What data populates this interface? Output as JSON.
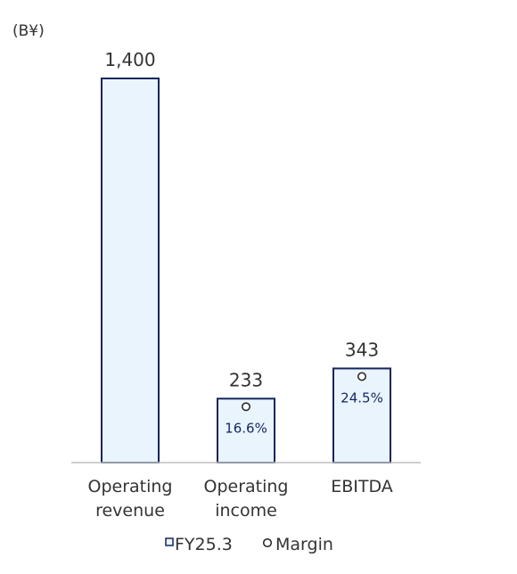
{
  "chart_data": {
    "type": "bar",
    "unit_label": "(B¥)",
    "categories": [
      [
        "Operating",
        "revenue"
      ],
      [
        "Operating",
        "income"
      ],
      [
        "EBITDA"
      ]
    ],
    "series": [
      {
        "name": "FY25.3",
        "values": [
          1400,
          233,
          343
        ],
        "value_labels": [
          "1,400",
          "233",
          "343"
        ]
      },
      {
        "name": "Margin",
        "values": [
          null,
          16.6,
          24.5
        ],
        "value_labels": [
          "",
          "16.6%",
          "24.5%"
        ]
      }
    ],
    "ylim": [
      0,
      1400
    ],
    "grid": false,
    "legend": "bottom",
    "colors": {
      "bar_fill": "#eaf4fd",
      "bar_stroke": "#14265e",
      "margin_text": "#14265e",
      "axis": "#bfbfbf",
      "text": "#333333"
    }
  }
}
